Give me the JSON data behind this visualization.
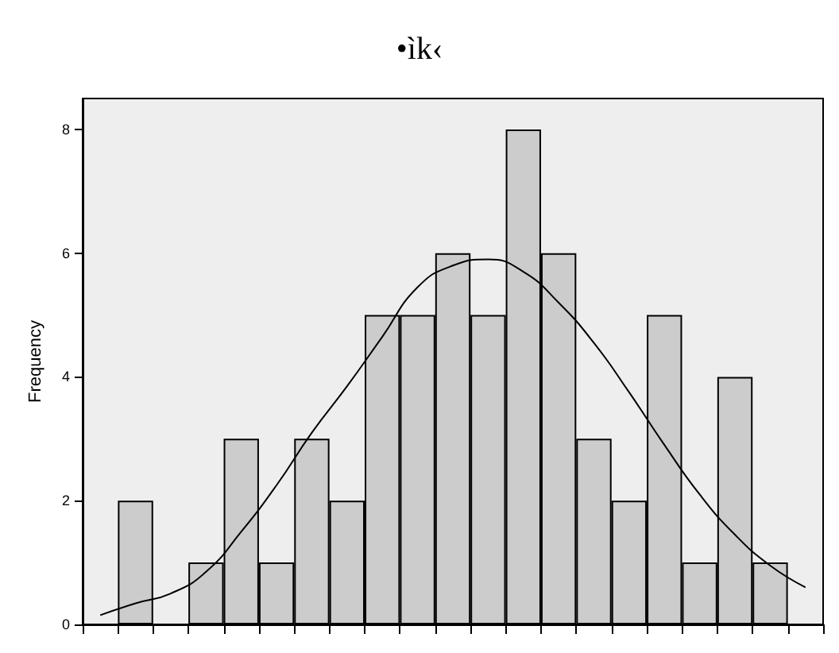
{
  "chart_data": {
    "type": "bar",
    "title": "•ìk‹",
    "ylabel": "Frequency",
    "categories": [
      null,
      null,
      null,
      null,
      null,
      null,
      null,
      null,
      null,
      null,
      null,
      null,
      null,
      null,
      null,
      null,
      null,
      null,
      null,
      null,
      null
    ],
    "series": [
      {
        "color": "#cccccc",
        "values": [
          null,
          2,
          0,
          1,
          3,
          1,
          3,
          2,
          5,
          5,
          6,
          5,
          8,
          6,
          3,
          2,
          5,
          1,
          4,
          1,
          null
        ]
      },
      {
        "type": "line",
        "color": "#000000",
        "values": [
          0.15,
          0.34,
          0.5,
          0.85,
          1.5,
          2.25,
          3.1,
          3.85,
          4.65,
          5.45,
          5.8,
          5.9,
          5.7,
          5.2,
          4.55,
          3.75,
          2.9,
          2.1,
          1.45,
          0.95,
          0.6
        ]
      }
    ],
    "ylim": [
      0,
      8.5
    ],
    "yticks": [
      0,
      2,
      4,
      6,
      8
    ],
    "tick_labels": "y",
    "grid": false,
    "marker": "none"
  }
}
